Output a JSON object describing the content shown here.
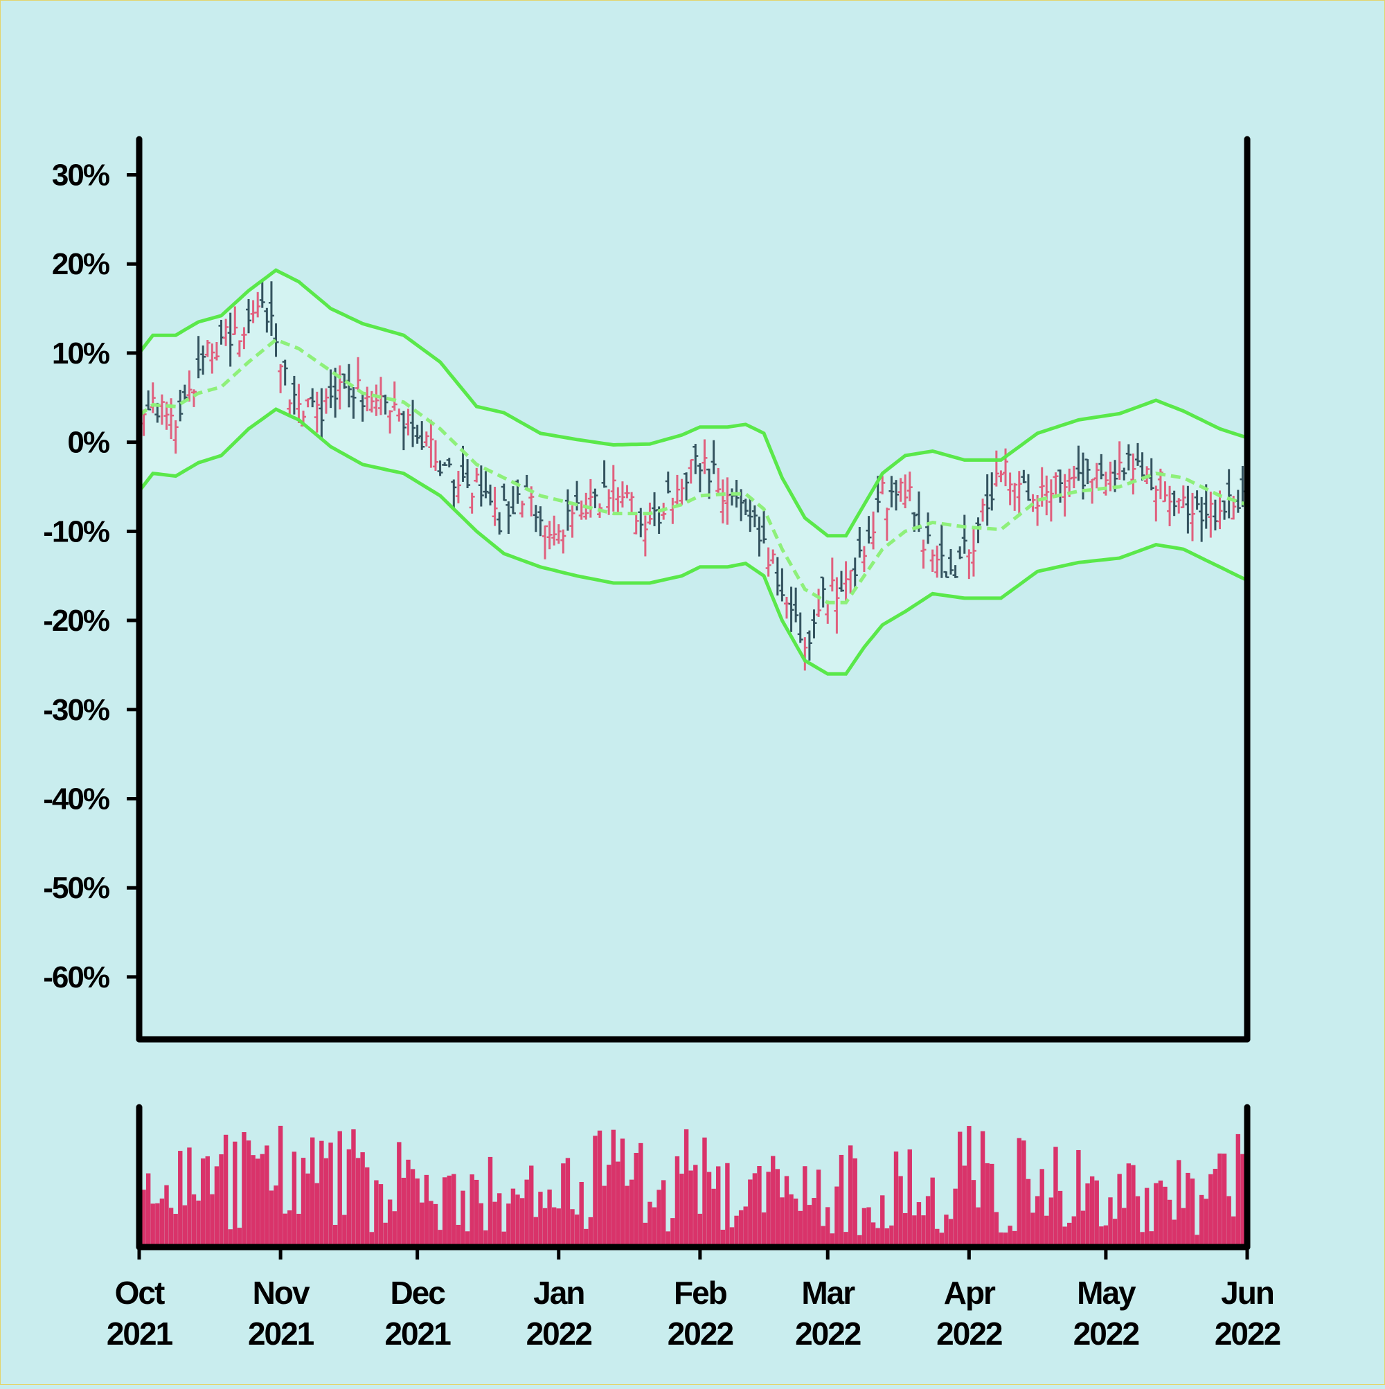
{
  "chart_data": {
    "type": "ohlc",
    "colors": {
      "background": "#c9edee",
      "up": "#e0607e",
      "down": "#34535f",
      "band": "#5ae84a",
      "band_fill": "#d4f3f2",
      "middle_band": "#8ef07a",
      "volume": "#d9336a",
      "axis": "#000000"
    },
    "price_panel": {
      "ylim": [
        -67,
        34
      ],
      "yticks": [
        30,
        20,
        10,
        0,
        -10,
        -20,
        -30,
        -40,
        -50,
        -60
      ],
      "ytick_labels": [
        "30%",
        "20%",
        "10%",
        "0%",
        "-10%",
        "-20%",
        "-30%",
        "-40%",
        "-50%",
        "-60%"
      ],
      "band_keypoints": [
        {
          "date": "2021-10-01",
          "upper": 10.0,
          "middle": 3.0,
          "lower": -5.5
        },
        {
          "date": "2021-10-04",
          "upper": 12.0,
          "middle": 4.2,
          "lower": -3.5
        },
        {
          "date": "2021-10-09",
          "upper": 12.0,
          "middle": 4.0,
          "lower": -3.8
        },
        {
          "date": "2021-10-14",
          "upper": 13.5,
          "middle": 5.5,
          "lower": -2.3
        },
        {
          "date": "2021-10-19",
          "upper": 14.2,
          "middle": 6.2,
          "lower": -1.5
        },
        {
          "date": "2021-10-25",
          "upper": 17.0,
          "middle": 9.0,
          "lower": 1.5
        },
        {
          "date": "2021-10-31",
          "upper": 19.3,
          "middle": 11.5,
          "lower": 3.7
        },
        {
          "date": "2021-11-05",
          "upper": 18.0,
          "middle": 10.5,
          "lower": 2.5
        },
        {
          "date": "2021-11-12",
          "upper": 15.0,
          "middle": 8.0,
          "lower": -0.5
        },
        {
          "date": "2021-11-19",
          "upper": 13.3,
          "middle": 5.5,
          "lower": -2.5
        },
        {
          "date": "2021-11-28",
          "upper": 12.0,
          "middle": 4.5,
          "lower": -3.5
        },
        {
          "date": "2021-12-06",
          "upper": 9.0,
          "middle": 1.5,
          "lower": -6.0
        },
        {
          "date": "2021-12-14",
          "upper": 4.0,
          "middle": -2.5,
          "lower": -10.0
        },
        {
          "date": "2021-12-20",
          "upper": 3.3,
          "middle": -4.0,
          "lower": -12.5
        },
        {
          "date": "2021-12-28",
          "upper": 1.0,
          "middle": -6.0,
          "lower": -14.0
        },
        {
          "date": "2022-01-05",
          "upper": 0.3,
          "middle": -7.0,
          "lower": -15.0
        },
        {
          "date": "2022-01-13",
          "upper": -0.3,
          "middle": -8.0,
          "lower": -15.8
        },
        {
          "date": "2022-01-21",
          "upper": -0.2,
          "middle": -8.0,
          "lower": -15.8
        },
        {
          "date": "2022-01-28",
          "upper": 0.8,
          "middle": -7.0,
          "lower": -15.0
        },
        {
          "date": "2022-02-01",
          "upper": 1.7,
          "middle": -6.0,
          "lower": -14.0
        },
        {
          "date": "2022-02-07",
          "upper": 1.7,
          "middle": -5.8,
          "lower": -14.0
        },
        {
          "date": "2022-02-11",
          "upper": 2.0,
          "middle": -5.8,
          "lower": -13.6
        },
        {
          "date": "2022-02-15",
          "upper": 1.0,
          "middle": -7.5,
          "lower": -15.0
        },
        {
          "date": "2022-02-19",
          "upper": -4.0,
          "middle": -12.0,
          "lower": -20.0
        },
        {
          "date": "2022-02-24",
          "upper": -8.5,
          "middle": -16.5,
          "lower": -24.5
        },
        {
          "date": "2022-03-01",
          "upper": -10.5,
          "middle": -18.0,
          "lower": -26.0
        },
        {
          "date": "2022-03-05",
          "upper": -10.5,
          "middle": -18.0,
          "lower": -26.0
        },
        {
          "date": "2022-03-09",
          "upper": -7.0,
          "middle": -15.0,
          "lower": -23.0
        },
        {
          "date": "2022-03-13",
          "upper": -3.5,
          "middle": -12.0,
          "lower": -20.5
        },
        {
          "date": "2022-03-18",
          "upper": -1.5,
          "middle": -10.0,
          "lower": -19.0
        },
        {
          "date": "2022-03-24",
          "upper": -1.0,
          "middle": -9.0,
          "lower": -17.0
        },
        {
          "date": "2022-03-31",
          "upper": -2.0,
          "middle": -9.5,
          "lower": -17.5
        },
        {
          "date": "2022-04-08",
          "upper": -2.0,
          "middle": -9.8,
          "lower": -17.5
        },
        {
          "date": "2022-04-16",
          "upper": 1.0,
          "middle": -6.5,
          "lower": -14.5
        },
        {
          "date": "2022-04-25",
          "upper": 2.5,
          "middle": -5.5,
          "lower": -13.5
        },
        {
          "date": "2022-05-04",
          "upper": 3.2,
          "middle": -5.0,
          "lower": -13.0
        },
        {
          "date": "2022-05-12",
          "upper": 4.7,
          "middle": -3.5,
          "lower": -11.5
        },
        {
          "date": "2022-05-18",
          "upper": 3.5,
          "middle": -4.0,
          "lower": -12.0
        },
        {
          "date": "2022-05-26",
          "upper": 1.5,
          "middle": -6.0,
          "lower": -14.0
        },
        {
          "date": "2022-06-01",
          "upper": 0.5,
          "middle": -7.0,
          "lower": -15.5
        }
      ],
      "price_keypoints": [
        {
          "date": "2021-10-01",
          "value": 3
        },
        {
          "date": "2021-10-06",
          "value": 4
        },
        {
          "date": "2021-10-09",
          "value": 2
        },
        {
          "date": "2021-10-16",
          "value": 10
        },
        {
          "date": "2021-10-24",
          "value": 13
        },
        {
          "date": "2021-10-29",
          "value": 15
        },
        {
          "date": "2021-11-03",
          "value": 5
        },
        {
          "date": "2021-11-08",
          "value": 3
        },
        {
          "date": "2021-11-15",
          "value": 6
        },
        {
          "date": "2021-11-22",
          "value": 5
        },
        {
          "date": "2021-11-29",
          "value": 2
        },
        {
          "date": "2021-12-07",
          "value": -3
        },
        {
          "date": "2021-12-14",
          "value": -5
        },
        {
          "date": "2021-12-18",
          "value": -9
        },
        {
          "date": "2021-12-23",
          "value": -6
        },
        {
          "date": "2022-01-01",
          "value": -10
        },
        {
          "date": "2022-01-06",
          "value": -8
        },
        {
          "date": "2022-01-13",
          "value": -5
        },
        {
          "date": "2022-01-21",
          "value": -9
        },
        {
          "date": "2022-01-27",
          "value": -6
        },
        {
          "date": "2022-01-31",
          "value": -2
        },
        {
          "date": "2022-02-06",
          "value": -5
        },
        {
          "date": "2022-02-12",
          "value": -7
        },
        {
          "date": "2022-02-18",
          "value": -15
        },
        {
          "date": "2022-02-24",
          "value": -23
        },
        {
          "date": "2022-02-28",
          "value": -17
        },
        {
          "date": "2022-03-04",
          "value": -16
        },
        {
          "date": "2022-03-09",
          "value": -12
        },
        {
          "date": "2022-03-13",
          "value": -6
        },
        {
          "date": "2022-03-19",
          "value": -6
        },
        {
          "date": "2022-03-23",
          "value": -12
        },
        {
          "date": "2022-03-28",
          "value": -15
        },
        {
          "date": "2022-04-03",
          "value": -10
        },
        {
          "date": "2022-04-08",
          "value": -3
        },
        {
          "date": "2022-04-15",
          "value": -6
        },
        {
          "date": "2022-04-22",
          "value": -5
        },
        {
          "date": "2022-04-30",
          "value": -3
        },
        {
          "date": "2022-05-08",
          "value": -2
        },
        {
          "date": "2022-05-15",
          "value": -6
        },
        {
          "date": "2022-05-22",
          "value": -8
        },
        {
          "date": "2022-06-01",
          "value": -7
        }
      ]
    },
    "volume_panel": {
      "color": "#d9336a"
    },
    "x_axis": {
      "start": "2021-10-01",
      "end": "2022-06-01",
      "ticks": [
        {
          "date": "2021-10-01",
          "month": "Oct",
          "year": "2021"
        },
        {
          "date": "2021-11-01",
          "month": "Nov",
          "year": "2021"
        },
        {
          "date": "2021-12-01",
          "month": "Dec",
          "year": "2021"
        },
        {
          "date": "2022-01-01",
          "month": "Jan",
          "year": "2022"
        },
        {
          "date": "2022-02-01",
          "month": "Feb",
          "year": "2022"
        },
        {
          "date": "2022-03-01",
          "month": "Mar",
          "year": "2022"
        },
        {
          "date": "2022-04-01",
          "month": "Apr",
          "year": "2022"
        },
        {
          "date": "2022-05-01",
          "month": "May",
          "year": "2022"
        },
        {
          "date": "2022-06-01",
          "month": "Jun",
          "year": "2022"
        }
      ]
    },
    "grid": false,
    "legend": "none"
  }
}
